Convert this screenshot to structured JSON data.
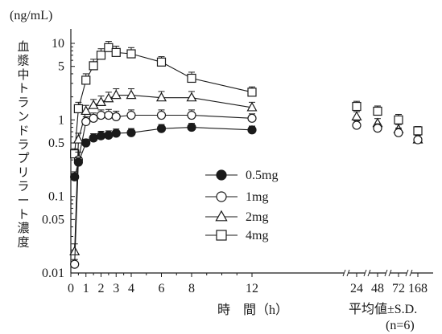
{
  "chart_data": {
    "type": "line",
    "title": "",
    "ylabel": "血漿中トランドラプリラート濃度",
    "yunit": "(ng/mL)",
    "xlabel": "時　間（h）",
    "y_scale": "log",
    "ylim": [
      0.01,
      15
    ],
    "yticks": [
      {
        "value": 0.01,
        "label": "0.01"
      },
      {
        "value": 0.05,
        "label": "0.05"
      },
      {
        "value": 0.1,
        "label": "0.1"
      },
      {
        "value": 0.5,
        "label": "0.5"
      },
      {
        "value": 1,
        "label": "1"
      },
      {
        "value": 5,
        "label": "5"
      },
      {
        "value": 10,
        "label": "10"
      }
    ],
    "xticks": [
      "0",
      "1",
      "2",
      "3",
      "4",
      "6",
      "8",
      "12",
      "24",
      "48",
      "72",
      "168"
    ],
    "x_axis_breaks_after": [
      12,
      24,
      48,
      72
    ],
    "footnote": [
      "平均値±S.D.",
      "(n=6)"
    ],
    "legend_position": "center",
    "series": [
      {
        "name": "0.5mg",
        "marker": "filled-circle",
        "points": [
          {
            "x": 0.25,
            "y": 0.18,
            "err": 0.03
          },
          {
            "x": 0.5,
            "y": 0.28,
            "err": 0.04
          },
          {
            "x": 1,
            "y": 0.5,
            "err": 0.06
          },
          {
            "x": 1.5,
            "y": 0.58,
            "err": 0.08
          },
          {
            "x": 2,
            "y": 0.62,
            "err": 0.09
          },
          {
            "x": 2.5,
            "y": 0.63,
            "err": 0.09
          },
          {
            "x": 3,
            "y": 0.67,
            "err": 0.09
          },
          {
            "x": 4,
            "y": 0.68,
            "err": 0.09
          },
          {
            "x": 6,
            "y": 0.77,
            "err": 0.1
          },
          {
            "x": 8,
            "y": 0.8,
            "err": 0.1
          },
          {
            "x": 12,
            "y": 0.74,
            "err": 0.09
          }
        ]
      },
      {
        "name": "1mg",
        "marker": "open-circle",
        "points": [
          {
            "x": 0.25,
            "y": 0.013,
            "err": 0.002
          },
          {
            "x": 0.5,
            "y": 0.3,
            "err": 0.08
          },
          {
            "x": 1,
            "y": 0.95,
            "err": 0.15
          },
          {
            "x": 1.5,
            "y": 1.05,
            "err": 0.18
          },
          {
            "x": 2,
            "y": 1.15,
            "err": 0.2
          },
          {
            "x": 2.5,
            "y": 1.15,
            "err": 0.22
          },
          {
            "x": 3,
            "y": 1.1,
            "err": 0.2
          },
          {
            "x": 4,
            "y": 1.15,
            "err": 0.2
          },
          {
            "x": 6,
            "y": 1.15,
            "err": 0.2
          },
          {
            "x": 8,
            "y": 1.15,
            "err": 0.2
          },
          {
            "x": 12,
            "y": 1.05,
            "err": 0.15
          },
          {
            "x": 24,
            "y": 0.85,
            "err": 0.12
          },
          {
            "x": 48,
            "y": 0.78,
            "err": 0.11
          },
          {
            "x": 72,
            "y": 0.68,
            "err": 0.1
          },
          {
            "x": 168,
            "y": 0.55,
            "err": 0.08
          }
        ]
      },
      {
        "name": "2mg",
        "marker": "open-triangle",
        "points": [
          {
            "x": 0.25,
            "y": 0.019,
            "err": 0.005
          },
          {
            "x": 0.5,
            "y": 0.55,
            "err": 0.12
          },
          {
            "x": 1,
            "y": 1.3,
            "err": 0.25
          },
          {
            "x": 1.5,
            "y": 1.55,
            "err": 0.3
          },
          {
            "x": 2,
            "y": 1.7,
            "err": 0.35
          },
          {
            "x": 2.5,
            "y": 1.9,
            "err": 0.4
          },
          {
            "x": 3,
            "y": 2.1,
            "err": 0.45
          },
          {
            "x": 4,
            "y": 2.1,
            "err": 0.45
          },
          {
            "x": 6,
            "y": 1.95,
            "err": 0.4
          },
          {
            "x": 8,
            "y": 1.95,
            "err": 0.4
          },
          {
            "x": 12,
            "y": 1.45,
            "err": 0.25
          },
          {
            "x": 24,
            "y": 1.1,
            "err": 0.18
          },
          {
            "x": 48,
            "y": 0.9,
            "err": 0.14
          },
          {
            "x": 72,
            "y": 0.75,
            "err": 0.12
          },
          {
            "x": 168,
            "y": 0.55,
            "err": 0.08
          }
        ]
      },
      {
        "name": "4mg",
        "marker": "open-square",
        "points": [
          {
            "x": 0.25,
            "y": 0.36,
            "err": 0.06
          },
          {
            "x": 0.5,
            "y": 1.4,
            "err": 0.3
          },
          {
            "x": 1,
            "y": 3.3,
            "err": 0.7
          },
          {
            "x": 1.5,
            "y": 5.1,
            "err": 1.1
          },
          {
            "x": 2,
            "y": 7.0,
            "err": 1.5
          },
          {
            "x": 2.5,
            "y": 8.8,
            "err": 1.8
          },
          {
            "x": 3,
            "y": 7.6,
            "err": 1.6
          },
          {
            "x": 4,
            "y": 7.3,
            "err": 1.5
          },
          {
            "x": 6,
            "y": 5.7,
            "err": 1.0
          },
          {
            "x": 8,
            "y": 3.5,
            "err": 0.7
          },
          {
            "x": 12,
            "y": 2.3,
            "err": 0.4
          },
          {
            "x": 24,
            "y": 1.5,
            "err": 0.25
          },
          {
            "x": 48,
            "y": 1.3,
            "err": 0.22
          },
          {
            "x": 72,
            "y": 1.0,
            "err": 0.18
          },
          {
            "x": 168,
            "y": 0.72,
            "err": 0.1
          }
        ]
      }
    ]
  }
}
